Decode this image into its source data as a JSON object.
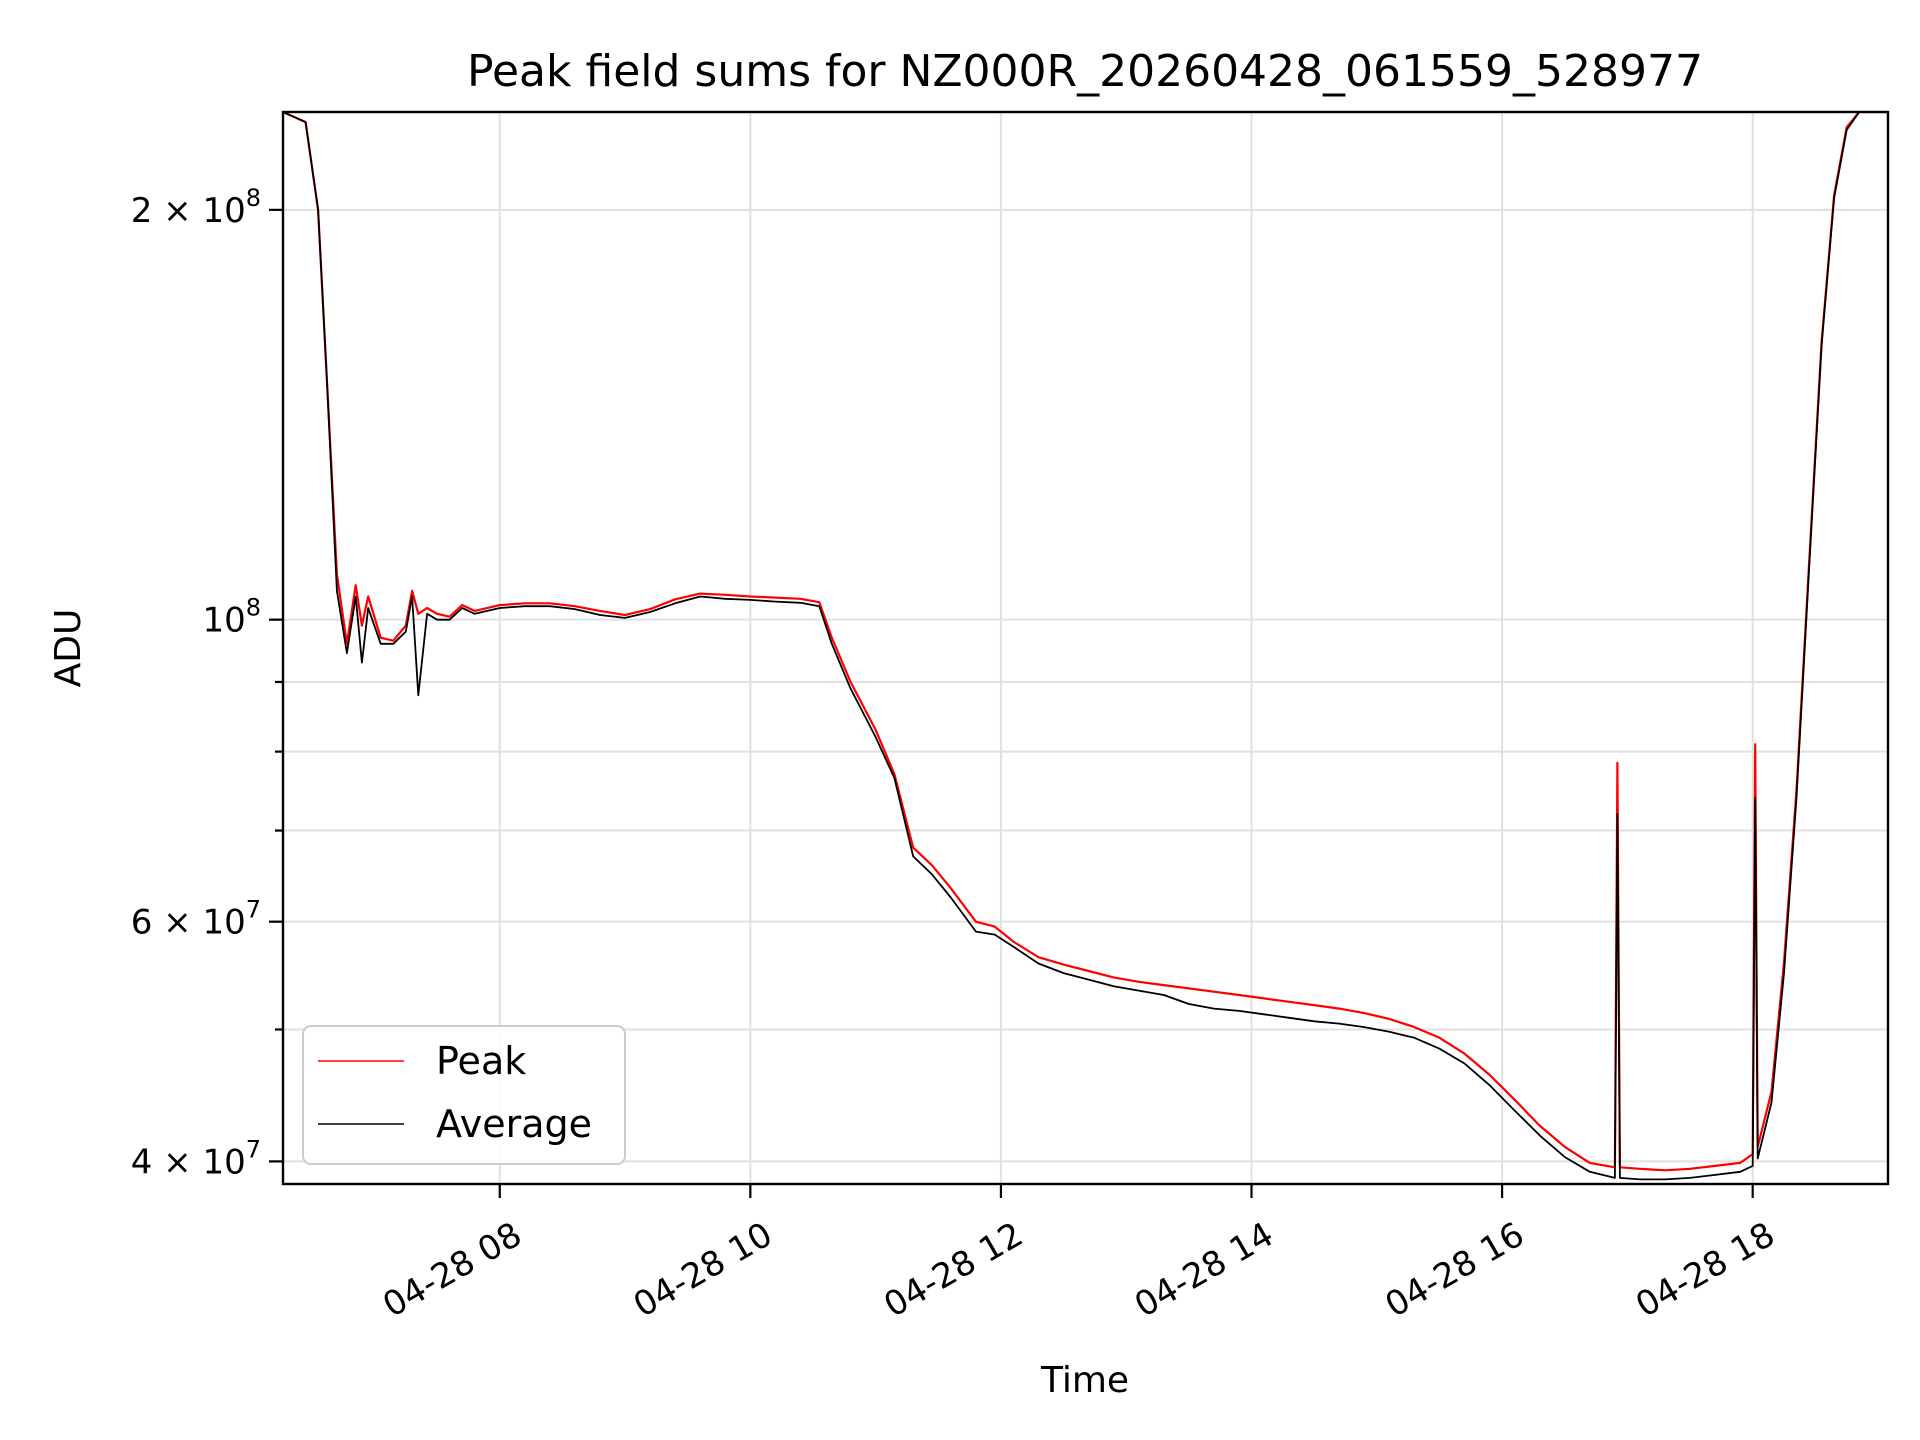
{
  "chart_data": {
    "type": "line",
    "title": "Peak field sums for NZ000R_20260428_061559_528977",
    "xlabel": "Time",
    "ylabel": "ADU",
    "x_unit": "hours since 2026-04-28 00:00",
    "xlim": [
      6.27,
      19.08
    ],
    "ylim": [
      38500000,
      236000000
    ],
    "yscale": "log",
    "grid": true,
    "legend_position": "lower-left",
    "x_ticks": [
      {
        "value": 8,
        "label": "04-28 08"
      },
      {
        "value": 10,
        "label": "04-28 10"
      },
      {
        "value": 12,
        "label": "04-28 12"
      },
      {
        "value": 14,
        "label": "04-28 14"
      },
      {
        "value": 16,
        "label": "04-28 16"
      },
      {
        "value": 18,
        "label": "04-28 18"
      }
    ],
    "y_major_ticks": [
      {
        "value": 40000000,
        "mantissa": "4",
        "exponent": "7"
      },
      {
        "value": 60000000,
        "mantissa": "6",
        "exponent": "7"
      },
      {
        "value": 100000000,
        "mantissa": "",
        "exponent": "8"
      },
      {
        "value": 200000000,
        "mantissa": "2",
        "exponent": "8"
      }
    ],
    "y_minor_grid": [
      50000000,
      70000000,
      80000000,
      90000000
    ],
    "series": [
      {
        "name": "Peak",
        "color": "#ff0000",
        "x": [
          6.27,
          6.45,
          6.55,
          6.62,
          6.7,
          6.78,
          6.85,
          6.9,
          6.95,
          7.05,
          7.15,
          7.25,
          7.3,
          7.35,
          7.42,
          7.5,
          7.6,
          7.7,
          7.8,
          8.0,
          8.2,
          8.4,
          8.6,
          8.8,
          9.0,
          9.2,
          9.4,
          9.6,
          9.8,
          10.0,
          10.2,
          10.4,
          10.55,
          10.65,
          10.8,
          11.0,
          11.15,
          11.3,
          11.45,
          11.6,
          11.8,
          11.95,
          12.1,
          12.3,
          12.5,
          12.7,
          12.9,
          13.1,
          13.3,
          13.5,
          13.7,
          13.9,
          14.1,
          14.3,
          14.5,
          14.7,
          14.9,
          15.1,
          15.3,
          15.5,
          15.7,
          15.9,
          16.1,
          16.3,
          16.5,
          16.7,
          16.9,
          16.92,
          16.94,
          17.1,
          17.3,
          17.5,
          17.7,
          17.9,
          18.0,
          18.02,
          18.04,
          18.15,
          18.25,
          18.35,
          18.45,
          18.55,
          18.65,
          18.75,
          18.85,
          18.95,
          19.08
        ],
        "y": [
          236000000,
          232000000,
          200000000,
          150000000,
          108000000,
          96000000,
          106000000,
          99000000,
          104000000,
          97000000,
          96500000,
          99000000,
          105000000,
          101000000,
          102000000,
          101000000,
          100500000,
          102500000,
          101500000,
          102500000,
          102800000,
          102800000,
          102300000,
          101500000,
          100800000,
          101800000,
          103500000,
          104500000,
          104300000,
          104000000,
          103800000,
          103600000,
          103000000,
          97000000,
          90000000,
          83000000,
          77000000,
          68000000,
          66000000,
          63500000,
          60000000,
          59500000,
          58000000,
          56500000,
          55800000,
          55200000,
          54600000,
          54200000,
          53900000,
          53600000,
          53300000,
          53000000,
          52700000,
          52400000,
          52100000,
          51800000,
          51400000,
          50900000,
          50200000,
          49300000,
          48000000,
          46300000,
          44400000,
          42500000,
          41000000,
          39900000,
          39600000,
          78500000,
          39600000,
          39500000,
          39400000,
          39500000,
          39700000,
          39900000,
          40500000,
          81000000,
          41000000,
          45000000,
          56000000,
          75000000,
          110000000,
          160000000,
          205000000,
          230000000,
          236000000,
          236000000,
          236000000
        ]
      },
      {
        "name": "Average",
        "color": "#000000",
        "x": [
          6.27,
          6.45,
          6.55,
          6.62,
          6.7,
          6.78,
          6.85,
          6.9,
          6.95,
          7.05,
          7.15,
          7.25,
          7.3,
          7.35,
          7.42,
          7.5,
          7.6,
          7.7,
          7.8,
          8.0,
          8.2,
          8.4,
          8.6,
          8.8,
          9.0,
          9.2,
          9.4,
          9.6,
          9.8,
          10.0,
          10.2,
          10.4,
          10.55,
          10.65,
          10.8,
          11.0,
          11.15,
          11.3,
          11.45,
          11.6,
          11.8,
          11.95,
          12.1,
          12.3,
          12.5,
          12.7,
          12.9,
          13.1,
          13.3,
          13.5,
          13.7,
          13.9,
          14.1,
          14.3,
          14.5,
          14.7,
          14.9,
          15.1,
          15.3,
          15.5,
          15.7,
          15.9,
          16.1,
          16.3,
          16.5,
          16.7,
          16.9,
          16.92,
          16.94,
          17.1,
          17.3,
          17.5,
          17.7,
          17.9,
          18.0,
          18.02,
          18.04,
          18.15,
          18.25,
          18.35,
          18.45,
          18.55,
          18.65,
          18.75,
          18.85,
          18.95,
          19.08
        ],
        "y": [
          236000000,
          232000000,
          200000000,
          150000000,
          105000000,
          94500000,
          104000000,
          93000000,
          102000000,
          96000000,
          96000000,
          98000000,
          104000000,
          88000000,
          101000000,
          100000000,
          100000000,
          102000000,
          101000000,
          102000000,
          102300000,
          102300000,
          101800000,
          100800000,
          100300000,
          101300000,
          102800000,
          104000000,
          103600000,
          103400000,
          103100000,
          102900000,
          102300000,
          96000000,
          89000000,
          82000000,
          76500000,
          67000000,
          65000000,
          62500000,
          59000000,
          58700000,
          57500000,
          55900000,
          55000000,
          54400000,
          53800000,
          53400000,
          53000000,
          52200000,
          51800000,
          51600000,
          51300000,
          51000000,
          50700000,
          50500000,
          50200000,
          49800000,
          49300000,
          48400000,
          47200000,
          45500000,
          43600000,
          41800000,
          40300000,
          39300000,
          38900000,
          72000000,
          38900000,
          38800000,
          38800000,
          38900000,
          39100000,
          39300000,
          39700000,
          74000000,
          40200000,
          44200000,
          55000000,
          74000000,
          109000000,
          159000000,
          204000000,
          229000000,
          236000000,
          236000000,
          236000000
        ]
      }
    ]
  }
}
